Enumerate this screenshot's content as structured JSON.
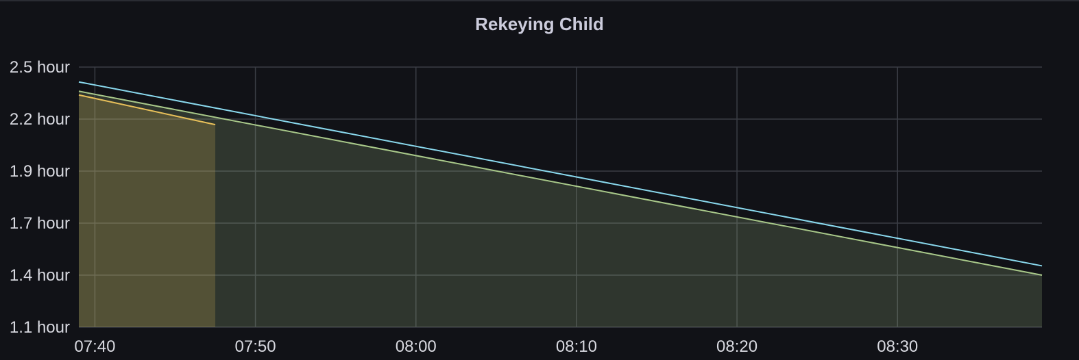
{
  "panel": {
    "title": "Rekeying Child"
  },
  "chart_data": {
    "type": "area",
    "title": "Rekeying Child",
    "xlabel": "",
    "ylabel": "",
    "x_ticks": [
      "07:40",
      "07:50",
      "08:00",
      "08:10",
      "08:20",
      "08:30"
    ],
    "y_ticks": [
      "2.5 hour",
      "2.2 hour",
      "1.9 hour",
      "1.7 hour",
      "1.4 hour",
      "1.1 hour"
    ],
    "ylim": [
      1.1,
      2.5
    ],
    "xlim": [
      "07:39:00",
      "08:39:00"
    ],
    "grid": true,
    "series": [
      {
        "color": "#8ad9ee",
        "fill": false,
        "points": [
          [
            "07:39:00",
            2.42
          ],
          [
            "08:39:00",
            1.43
          ]
        ]
      },
      {
        "color": "#a9c98a",
        "fill": true,
        "points": [
          [
            "07:39:00",
            2.37
          ],
          [
            "08:39:00",
            1.38
          ]
        ]
      },
      {
        "color": "#e8c05a",
        "fill": true,
        "points": [
          [
            "07:39:00",
            2.35
          ],
          [
            "07:47:30",
            2.19
          ]
        ]
      }
    ],
    "colors": {
      "background": "#111217",
      "grid": "#3a3d45",
      "text": "#d8d9e0"
    }
  }
}
